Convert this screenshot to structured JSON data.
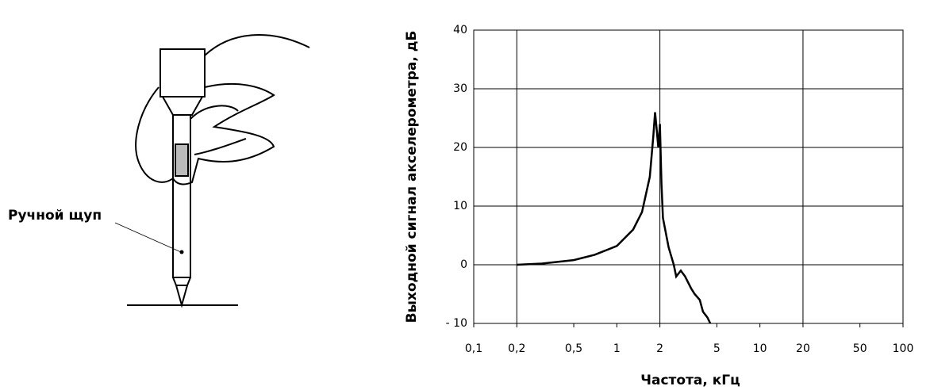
{
  "illustration": {
    "label": "Ручной щуп"
  },
  "chart_data": {
    "type": "line",
    "ylabel": "Выходной сигнал акселерометра, дБ",
    "xlabel": "Частота, кГц",
    "xscale": "log",
    "xlim": [
      0.1,
      100
    ],
    "xticks": [
      {
        "value": 0.1,
        "label": "0,1"
      },
      {
        "value": 0.2,
        "label": "0,2"
      },
      {
        "value": 0.5,
        "label": "0,5"
      },
      1,
      2,
      5,
      10,
      20,
      50,
      100
    ],
    "xgrid": [
      0.2,
      2,
      20
    ],
    "ylim": [
      -10,
      40
    ],
    "yticks": [
      {
        "value": -10,
        "label": "- 10"
      },
      0,
      10,
      20,
      30,
      40
    ],
    "grid": true,
    "color": "#000000",
    "x": [
      0.2,
      0.3,
      0.5,
      0.7,
      1,
      1.3,
      1.5,
      1.7,
      1.8,
      1.85,
      1.9,
      1.95,
      2.0,
      2.05,
      2.1,
      2.3,
      2.5,
      2.6,
      2.8,
      3.0,
      3.3,
      3.5,
      3.8,
      4.0,
      4.3,
      4.5
    ],
    "values": [
      0,
      0.2,
      0.8,
      1.7,
      3.2,
      6,
      9,
      15,
      22,
      26,
      23,
      20,
      24,
      14,
      8,
      3,
      0,
      -2,
      -1,
      -2,
      -4,
      -5,
      -6,
      -8,
      -9,
      -10
    ]
  }
}
